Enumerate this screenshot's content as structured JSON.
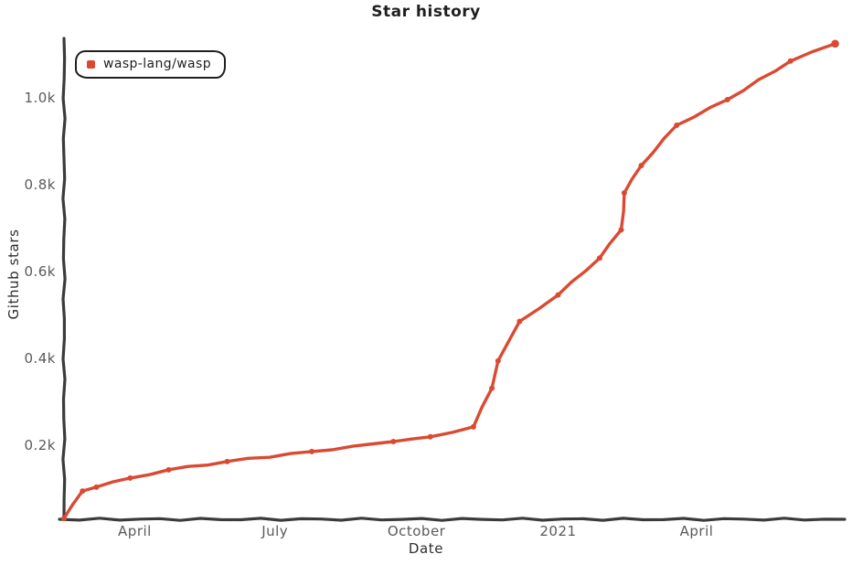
{
  "chart": {
    "title": "Star history",
    "xlabel": "Date",
    "ylabel": "Github stars",
    "legend": {
      "label": "wasp-lang/wasp"
    }
  },
  "colors": {
    "line": "#DA4A33",
    "axis": "#3B3B3B",
    "tick_label": "#5A5A5A",
    "text": "#1F1F1F",
    "background": "#FFFFFF"
  },
  "chart_data": {
    "type": "line",
    "title": "Star history",
    "xlabel": "Date",
    "ylabel": "Github stars",
    "legend_position": "top-left",
    "grid": false,
    "style": "hand-drawn-xkcd",
    "x_domain": [
      "2020-02-15",
      "2021-07-05"
    ],
    "y_domain": [
      31,
      1133
    ],
    "x_ticks": [
      {
        "date": "2020-04-01",
        "label": "April"
      },
      {
        "date": "2020-07-01",
        "label": "July"
      },
      {
        "date": "2020-10-01",
        "label": "October"
      },
      {
        "date": "2021-01-01",
        "label": "2021"
      },
      {
        "date": "2021-04-01",
        "label": "April"
      }
    ],
    "y_ticks": [
      {
        "value": 200,
        "label": "0.2k"
      },
      {
        "value": 400,
        "label": "0.4k"
      },
      {
        "value": 600,
        "label": "0.6k"
      },
      {
        "value": 800,
        "label": "0.8k"
      },
      {
        "value": 1000,
        "label": "1.0k"
      }
    ],
    "series": [
      {
        "name": "wasp-lang/wasp",
        "color": "#DA4A33",
        "points": [
          {
            "date": "2020-02-15",
            "stars": 31
          },
          {
            "date": "2020-02-27",
            "stars": 94
          },
          {
            "date": "2020-03-07",
            "stars": 103
          },
          {
            "date": "2020-03-29",
            "stars": 124
          },
          {
            "date": "2020-04-23",
            "stars": 143
          },
          {
            "date": "2020-05-31",
            "stars": 162
          },
          {
            "date": "2020-07-25",
            "stars": 185
          },
          {
            "date": "2020-09-16",
            "stars": 208
          },
          {
            "date": "2020-10-10",
            "stars": 219
          },
          {
            "date": "2020-11-07",
            "stars": 242
          },
          {
            "date": "2020-11-19",
            "stars": 331
          },
          {
            "date": "2020-11-23",
            "stars": 394
          },
          {
            "date": "2020-12-07",
            "stars": 485
          },
          {
            "date": "2021-01-01",
            "stars": 546
          },
          {
            "date": "2021-01-28",
            "stars": 631
          },
          {
            "date": "2021-02-11",
            "stars": 696
          },
          {
            "date": "2021-02-13",
            "stars": 781
          },
          {
            "date": "2021-02-24",
            "stars": 844
          },
          {
            "date": "2021-03-19",
            "stars": 937
          },
          {
            "date": "2021-04-21",
            "stars": 996
          },
          {
            "date": "2021-06-01",
            "stars": 1085
          },
          {
            "date": "2021-06-30",
            "stars": 1125
          }
        ]
      }
    ]
  }
}
